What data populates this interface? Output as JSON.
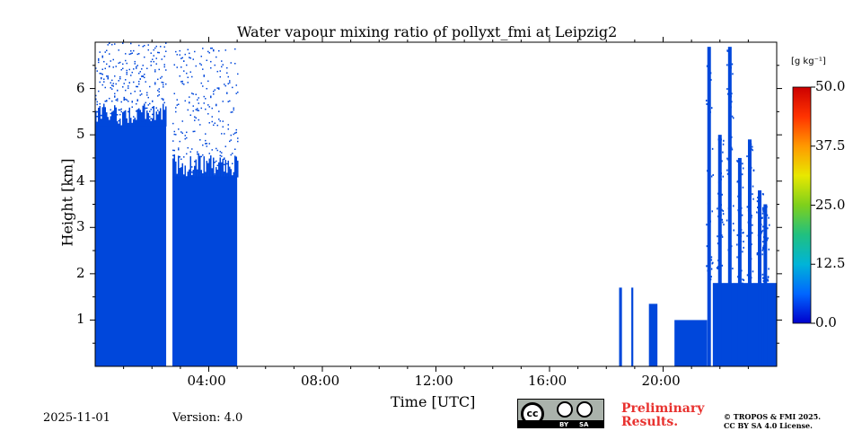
{
  "chart_data": {
    "type": "heatmap",
    "title": "Water vapour mixing ratio of pollyxt_fmi at Leipzig2",
    "xlabel": "Time [UTC]",
    "ylabel": "Height [km]",
    "xlim_hours": [
      0,
      24
    ],
    "ylim_km": [
      0,
      7
    ],
    "xticks": [
      {
        "hour": 4,
        "label": "04:00"
      },
      {
        "hour": 8,
        "label": "08:00"
      },
      {
        "hour": 12,
        "label": "12:00"
      },
      {
        "hour": 16,
        "label": "16:00"
      },
      {
        "hour": 20,
        "label": "20:00"
      }
    ],
    "yticks": [
      {
        "km": 1,
        "label": "1"
      },
      {
        "km": 2,
        "label": "2"
      },
      {
        "km": 3,
        "label": "3"
      },
      {
        "km": 4,
        "label": "4"
      },
      {
        "km": 5,
        "label": "5"
      },
      {
        "km": 6,
        "label": "6"
      }
    ],
    "colorbar": {
      "label": "[g kg⁻¹]",
      "min": 0.0,
      "max": 50.0,
      "ticks": [
        "0.0",
        "12.5",
        "25.0",
        "37.5",
        "50.0"
      ],
      "colors": [
        "#0000cc",
        "#0066ff",
        "#00b4d8",
        "#20c080",
        "#7ed01c",
        "#e8e800",
        "#ff9900",
        "#ff3300",
        "#cc0000"
      ]
    },
    "data_color": "#0047db",
    "blocks": [
      {
        "t0": 0.0,
        "t1": 2.5,
        "top": 5.2,
        "scatter_top": 7.0
      },
      {
        "t0": 2.72,
        "t1": 5.0,
        "top": 4.1,
        "scatter_top": 6.9
      },
      {
        "t0": 18.45,
        "t1": 18.55,
        "top": 1.7
      },
      {
        "t0": 18.88,
        "t1": 18.95,
        "top": 1.7
      },
      {
        "t0": 19.5,
        "t1": 19.8,
        "top": 1.35
      },
      {
        "t0": 20.4,
        "t1": 21.55,
        "top": 1.0
      },
      {
        "t0": 21.75,
        "t1": 24.0,
        "top": 1.8
      }
    ],
    "spikes": [
      {
        "t": 21.62,
        "top": 6.9
      },
      {
        "t": 22.0,
        "top": 5.0
      },
      {
        "t": 22.35,
        "top": 6.9
      },
      {
        "t": 22.7,
        "top": 4.5
      },
      {
        "t": 23.05,
        "top": 4.9
      },
      {
        "t": 23.4,
        "top": 3.8
      },
      {
        "t": 23.6,
        "top": 3.5
      }
    ]
  },
  "footer": {
    "date": "2025-11-01",
    "version": "Version: 4.0",
    "license_badge": {
      "cc": "cc",
      "by": "BY",
      "sa": "SA"
    },
    "preliminary": [
      "Preliminary",
      "Results."
    ],
    "copyright": [
      "© TROPOS & FMI 2025.",
      "CC BY SA 4.0 License."
    ]
  }
}
